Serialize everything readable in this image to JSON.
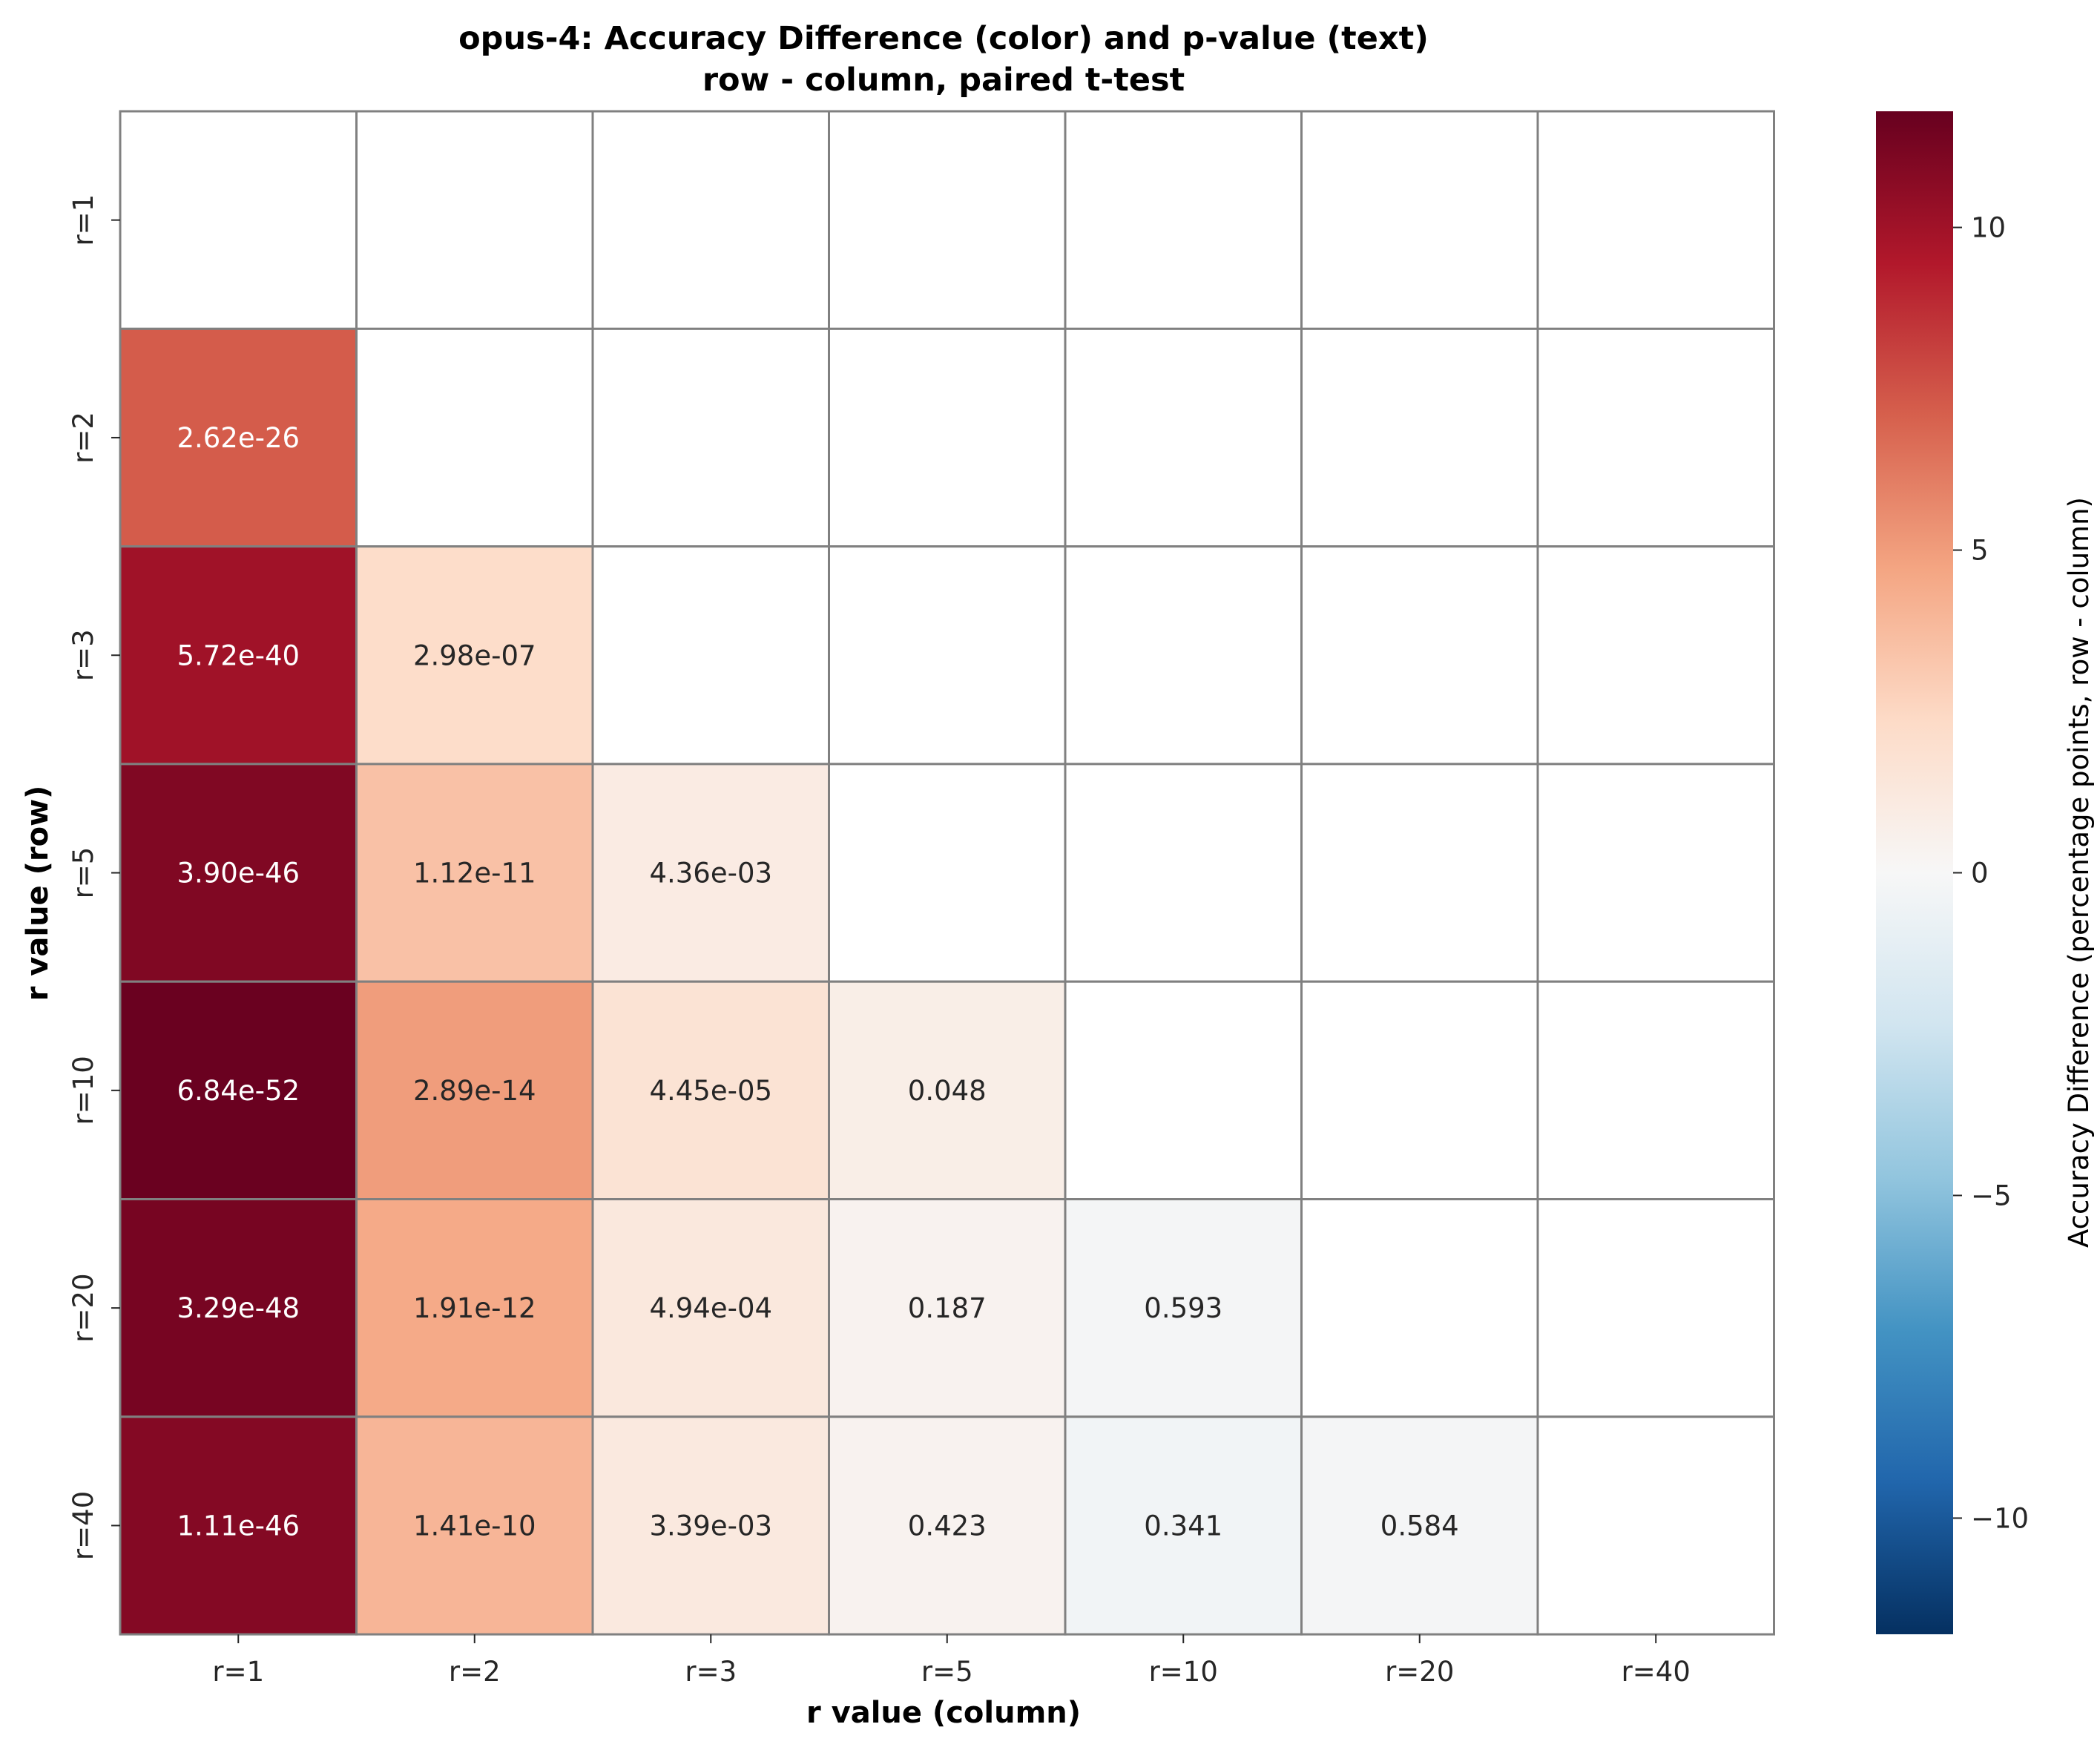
{
  "chart_data": {
    "type": "heatmap",
    "title": "opus-4: Accuracy Difference (color) and p-value (text)",
    "subtitle": "row - column, paired t-test",
    "xlabel": "r value (column)",
    "ylabel": "r value (row)",
    "x_categories": [
      "r=1",
      "r=2",
      "r=3",
      "r=5",
      "r=10",
      "r=20",
      "r=40"
    ],
    "y_categories": [
      "r=1",
      "r=2",
      "r=3",
      "r=5",
      "r=10",
      "r=20",
      "r=40"
    ],
    "values": [
      [
        null,
        null,
        null,
        null,
        null,
        null,
        null
      ],
      [
        7.2,
        null,
        null,
        null,
        null,
        null,
        null
      ],
      [
        10.0,
        2.2,
        null,
        null,
        null,
        null,
        null
      ],
      [
        11.0,
        3.5,
        1.0,
        null,
        null,
        null,
        null
      ],
      [
        11.7,
        5.0,
        1.7,
        0.8,
        null,
        null,
        null
      ],
      [
        11.3,
        4.5,
        1.3,
        0.4,
        -0.2,
        null,
        null
      ],
      [
        10.9,
        4.0,
        1.2,
        0.4,
        -0.4,
        -0.2,
        null
      ]
    ],
    "annotations": [
      [
        "",
        "",
        "",
        "",
        "",
        "",
        ""
      ],
      [
        "2.62e-26",
        "",
        "",
        "",
        "",
        "",
        ""
      ],
      [
        "5.72e-40",
        "2.98e-07",
        "",
        "",
        "",
        "",
        ""
      ],
      [
        "3.90e-46",
        "1.12e-11",
        "4.36e-03",
        "",
        "",
        "",
        ""
      ],
      [
        "6.84e-52",
        "2.89e-14",
        "4.45e-05",
        "0.048",
        "",
        "",
        ""
      ],
      [
        "3.29e-48",
        "1.91e-12",
        "4.94e-04",
        "0.187",
        "0.593",
        "",
        ""
      ],
      [
        "1.11e-46",
        "1.41e-10",
        "3.39e-03",
        "0.423",
        "0.341",
        "0.584",
        ""
      ]
    ],
    "colorbar": {
      "label": "Accuracy Difference (percentage points, row - column)",
      "vmin": -11.8,
      "vmax": 11.8,
      "ticks": [
        10,
        5,
        0,
        -5,
        -10
      ],
      "tick_labels": [
        "10",
        "5",
        "0",
        "−5",
        "−10"
      ],
      "colormap": "RdBu_r"
    },
    "cell_border_color": "#808080",
    "grid": true
  }
}
